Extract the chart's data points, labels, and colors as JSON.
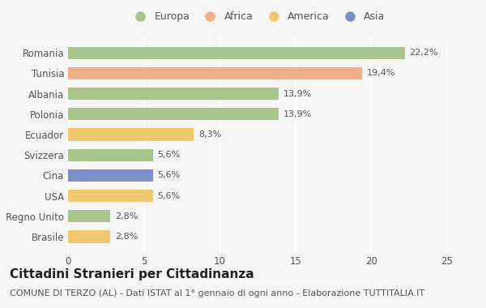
{
  "categories": [
    "Brasile",
    "Regno Unito",
    "USA",
    "Cina",
    "Svizzera",
    "Ecuador",
    "Polonia",
    "Albania",
    "Tunisia",
    "Romania"
  ],
  "values": [
    2.8,
    2.8,
    5.6,
    5.6,
    5.6,
    8.3,
    13.9,
    13.9,
    19.4,
    22.2
  ],
  "labels": [
    "2,8%",
    "2,8%",
    "5,6%",
    "5,6%",
    "5,6%",
    "8,3%",
    "13,9%",
    "13,9%",
    "19,4%",
    "22,2%"
  ],
  "colors": [
    "#f0c96e",
    "#a8c48a",
    "#f0c96e",
    "#7b8ec8",
    "#a8c48a",
    "#f0c96e",
    "#a8c48a",
    "#a8c48a",
    "#f2ae85",
    "#a8c48a"
  ],
  "legend_labels": [
    "Europa",
    "Africa",
    "America",
    "Asia"
  ],
  "legend_colors": [
    "#a8c48a",
    "#f2ae85",
    "#f0c96e",
    "#7b8ec8"
  ],
  "xlim": [
    0,
    25
  ],
  "xticks": [
    0,
    5,
    10,
    15,
    20,
    25
  ],
  "title": "Cittadini Stranieri per Cittadinanza",
  "subtitle": "COMUNE DI TERZO (AL) - Dati ISTAT al 1° gennaio di ogni anno - Elaborazione TUTTITALIA.IT",
  "bg_color": "#f5f5f5",
  "bar_height": 0.6,
  "grid_color": "#ffffff",
  "title_fontsize": 11,
  "subtitle_fontsize": 8,
  "label_fontsize": 8,
  "tick_fontsize": 8.5,
  "legend_fontsize": 9
}
